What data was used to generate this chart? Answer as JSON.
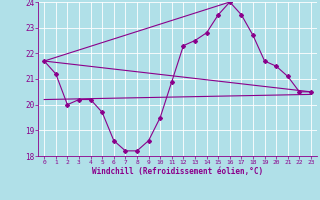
{
  "xlabel": "Windchill (Refroidissement éolien,°C)",
  "background_color": "#b0e0e8",
  "line_color": "#8b008b",
  "grid_color": "#ffffff",
  "xlim": [
    -0.5,
    23.5
  ],
  "ylim": [
    18,
    24
  ],
  "yticks": [
    18,
    19,
    20,
    21,
    22,
    23,
    24
  ],
  "xticks": [
    0,
    1,
    2,
    3,
    4,
    5,
    6,
    7,
    8,
    9,
    10,
    11,
    12,
    13,
    14,
    15,
    16,
    17,
    18,
    19,
    20,
    21,
    22,
    23
  ],
  "series1_x": [
    0,
    1,
    2,
    3,
    4,
    5,
    6,
    7,
    8,
    9,
    10,
    11,
    12,
    13,
    14,
    15,
    16,
    17,
    18,
    19,
    20,
    21,
    22,
    23
  ],
  "series1_y": [
    21.7,
    21.2,
    20.0,
    20.2,
    20.2,
    19.7,
    18.6,
    18.2,
    18.2,
    18.6,
    19.5,
    20.9,
    22.3,
    22.5,
    22.8,
    23.5,
    24.0,
    23.5,
    22.7,
    21.7,
    21.5,
    21.1,
    20.5,
    20.5
  ],
  "series2_x": [
    0,
    23
  ],
  "series2_y": [
    21.7,
    20.5
  ],
  "series3_x": [
    0,
    16
  ],
  "series3_y": [
    21.7,
    24.0
  ],
  "series4_x": [
    0,
    23
  ],
  "series4_y": [
    20.2,
    20.4
  ],
  "xlabel_fontsize": 5.5,
  "ytick_fontsize": 5.5,
  "xtick_fontsize": 4.5
}
